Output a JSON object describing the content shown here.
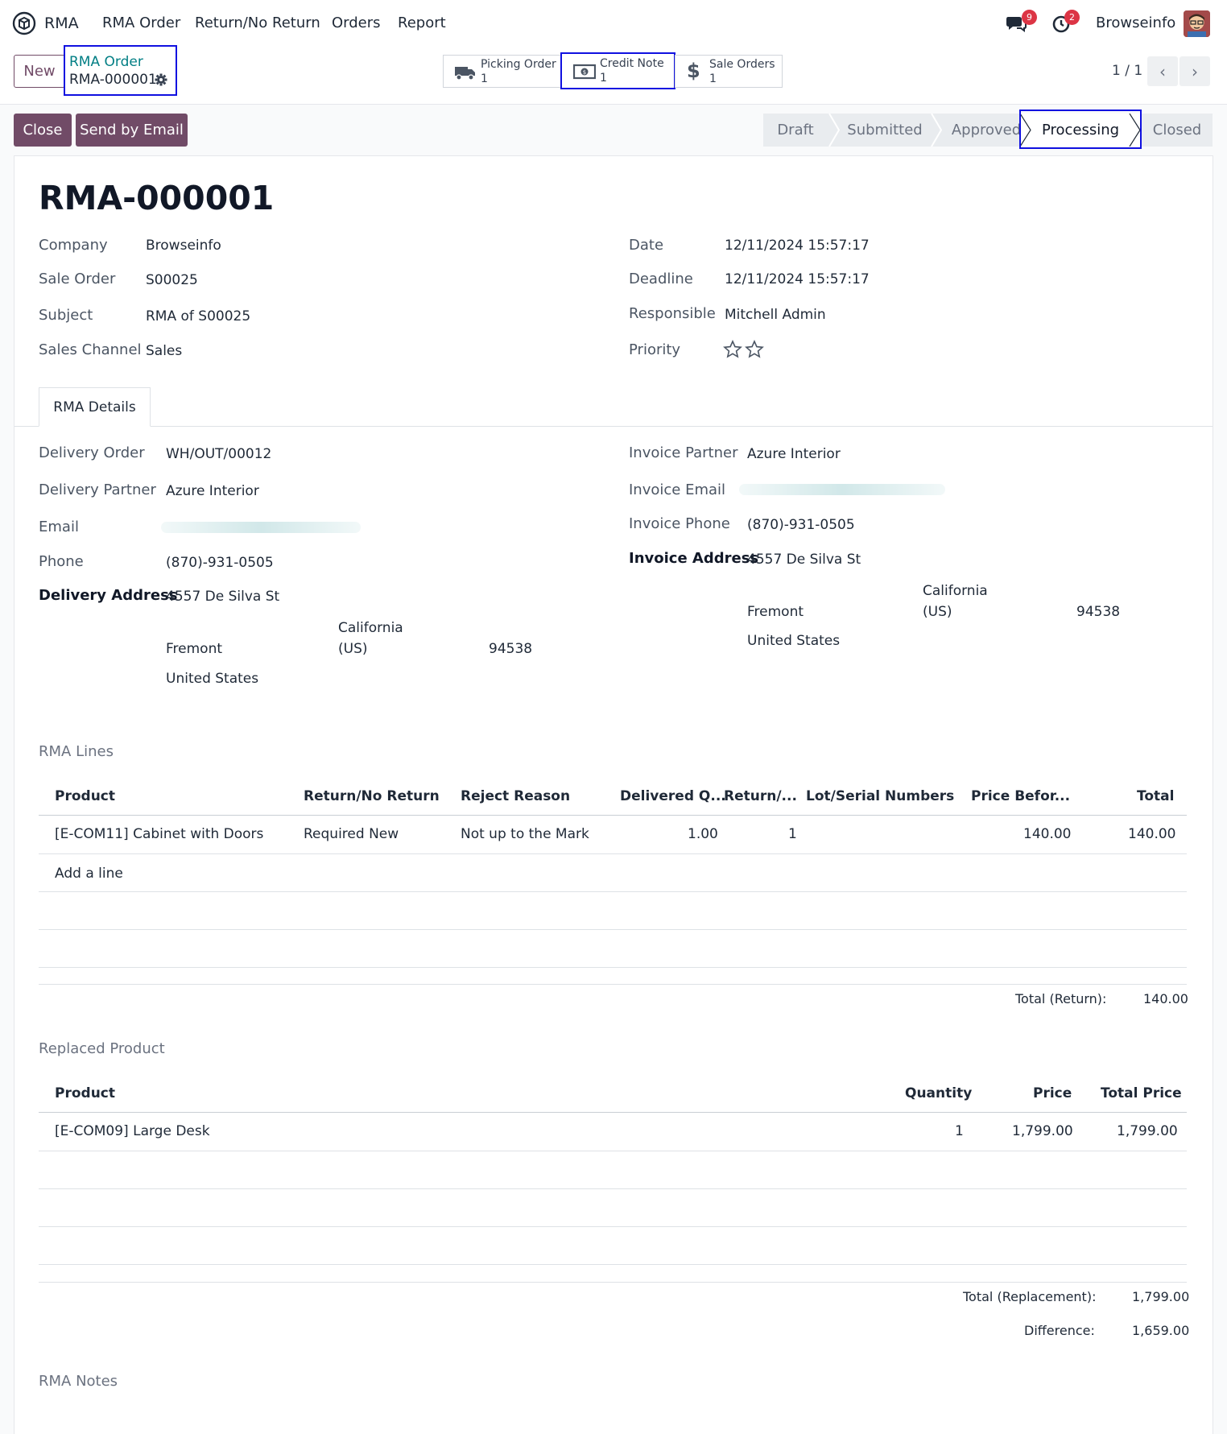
{
  "nav": {
    "app_name": "RMA",
    "menu": [
      "RMA Order",
      "Return/No Return",
      "Orders",
      "Report"
    ],
    "messages_count": "9",
    "activities_count": "2",
    "company": "Browseinfo"
  },
  "control": {
    "new_label": "New",
    "breadcrumb_parent": "RMA Order",
    "breadcrumb_current": "RMA-000001",
    "smart_buttons": [
      {
        "label": "Picking Order",
        "count": "1",
        "icon": "truck-icon"
      },
      {
        "label": "Credit Note",
        "count": "1",
        "icon": "money-icon"
      },
      {
        "label": "Sale Orders",
        "count": "1",
        "icon": "dollar-icon"
      }
    ],
    "pager": "1 / 1"
  },
  "actions": {
    "close_label": "Close",
    "send_email_label": "Send by Email"
  },
  "status_stages": [
    "Draft",
    "Submitted",
    "Approved",
    "Processing",
    "Closed"
  ],
  "status_current": "Processing",
  "record": {
    "name": "RMA-000001",
    "company_label": "Company",
    "company": "Browseinfo",
    "sale_order_label": "Sale Order",
    "sale_order": "S00025",
    "subject_label": "Subject",
    "subject": "RMA of S00025",
    "sales_channel_label": "Sales Channel",
    "sales_channel": "Sales",
    "date_label": "Date",
    "date": "12/11/2024 15:57:17",
    "deadline_label": "Deadline",
    "deadline": "12/11/2024 15:57:17",
    "responsible_label": "Responsible",
    "responsible": "Mitchell Admin",
    "priority_label": "Priority",
    "priority_stars": 0,
    "priority_max": 2
  },
  "tabs": [
    "RMA Details"
  ],
  "details": {
    "delivery_order_label": "Delivery Order",
    "delivery_order": "WH/OUT/00012",
    "delivery_partner_label": "Delivery Partner",
    "delivery_partner": "Azure Interior",
    "email_label": "Email",
    "phone_label": "Phone",
    "phone": "(870)-931-0505",
    "delivery_address_label": "Delivery Address",
    "delivery_address": {
      "street": "4557 De Silva St",
      "city": "Fremont",
      "state": "California",
      "state_code": "(US)",
      "zip": "94538",
      "country": "United States"
    },
    "invoice_partner_label": "Invoice Partner",
    "invoice_partner": "Azure Interior",
    "invoice_email_label": "Invoice Email",
    "invoice_phone_label": "Invoice Phone",
    "invoice_phone": "(870)-931-0505",
    "invoice_address_label": "Invoice Address",
    "invoice_address": {
      "street": "4557 De Silva St",
      "city": "Fremont",
      "state": "California",
      "state_code": "(US)",
      "zip": "94538",
      "country": "United States"
    }
  },
  "rma_lines": {
    "title": "RMA Lines",
    "headers": [
      "Product",
      "Return/No Return",
      "Reject Reason",
      "Delivered Q...",
      "Return/...",
      "Lot/Serial Numbers",
      "Price Befor...",
      "Total"
    ],
    "rows": [
      {
        "product": "[E-COM11] Cabinet with Doors",
        "return": "Required New",
        "reason": "Not up to the Mark",
        "delivered": "1.00",
        "return_qty": "1",
        "lot": "",
        "price": "140.00",
        "total": "140.00"
      }
    ],
    "add_line": "Add a line",
    "total_label": "Total (Return):",
    "total_value": "140.00"
  },
  "replaced": {
    "title": "Replaced Product",
    "headers": [
      "Product",
      "Quantity",
      "Price",
      "Total Price"
    ],
    "rows": [
      {
        "product": "[E-COM09] Large Desk",
        "qty": "1",
        "price": "1,799.00",
        "total": "1,799.00"
      }
    ],
    "total_label": "Total (Replacement):",
    "total_value": "1,799.00",
    "diff_label": "Difference:",
    "diff_value": "1,659.00"
  },
  "notes_title": "RMA Notes"
}
